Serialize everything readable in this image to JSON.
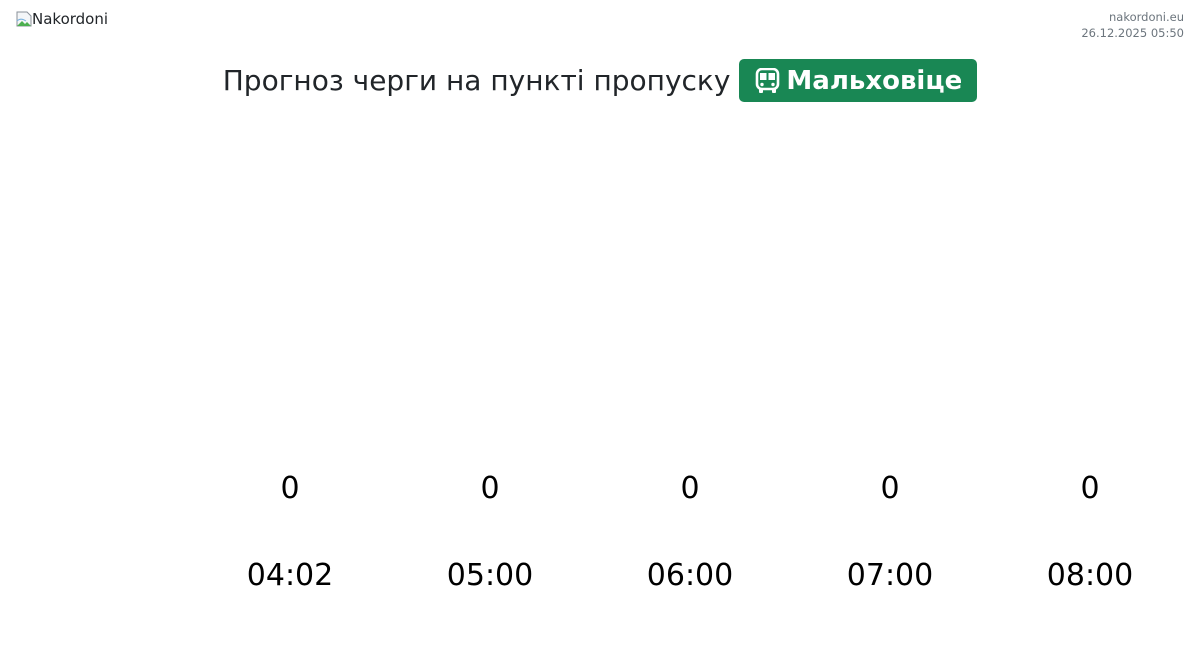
{
  "header": {
    "logo_alt": "Nakordoni",
    "site": "nakordoni.eu",
    "timestamp": "26.12.2025 05:50"
  },
  "title": "Прогноз черги на пункті пропуску",
  "checkpoint": {
    "icon": "bus-icon",
    "name": "Мальховіце",
    "color": "#198754"
  },
  "chart_data": {
    "type": "bar",
    "categories": [
      "04:02",
      "05:00",
      "06:00",
      "07:00",
      "08:00"
    ],
    "values": [
      0,
      0,
      0,
      0,
      0
    ],
    "title": "",
    "xlabel": "",
    "ylabel": "",
    "grid": false,
    "bar_color": "#198754"
  }
}
